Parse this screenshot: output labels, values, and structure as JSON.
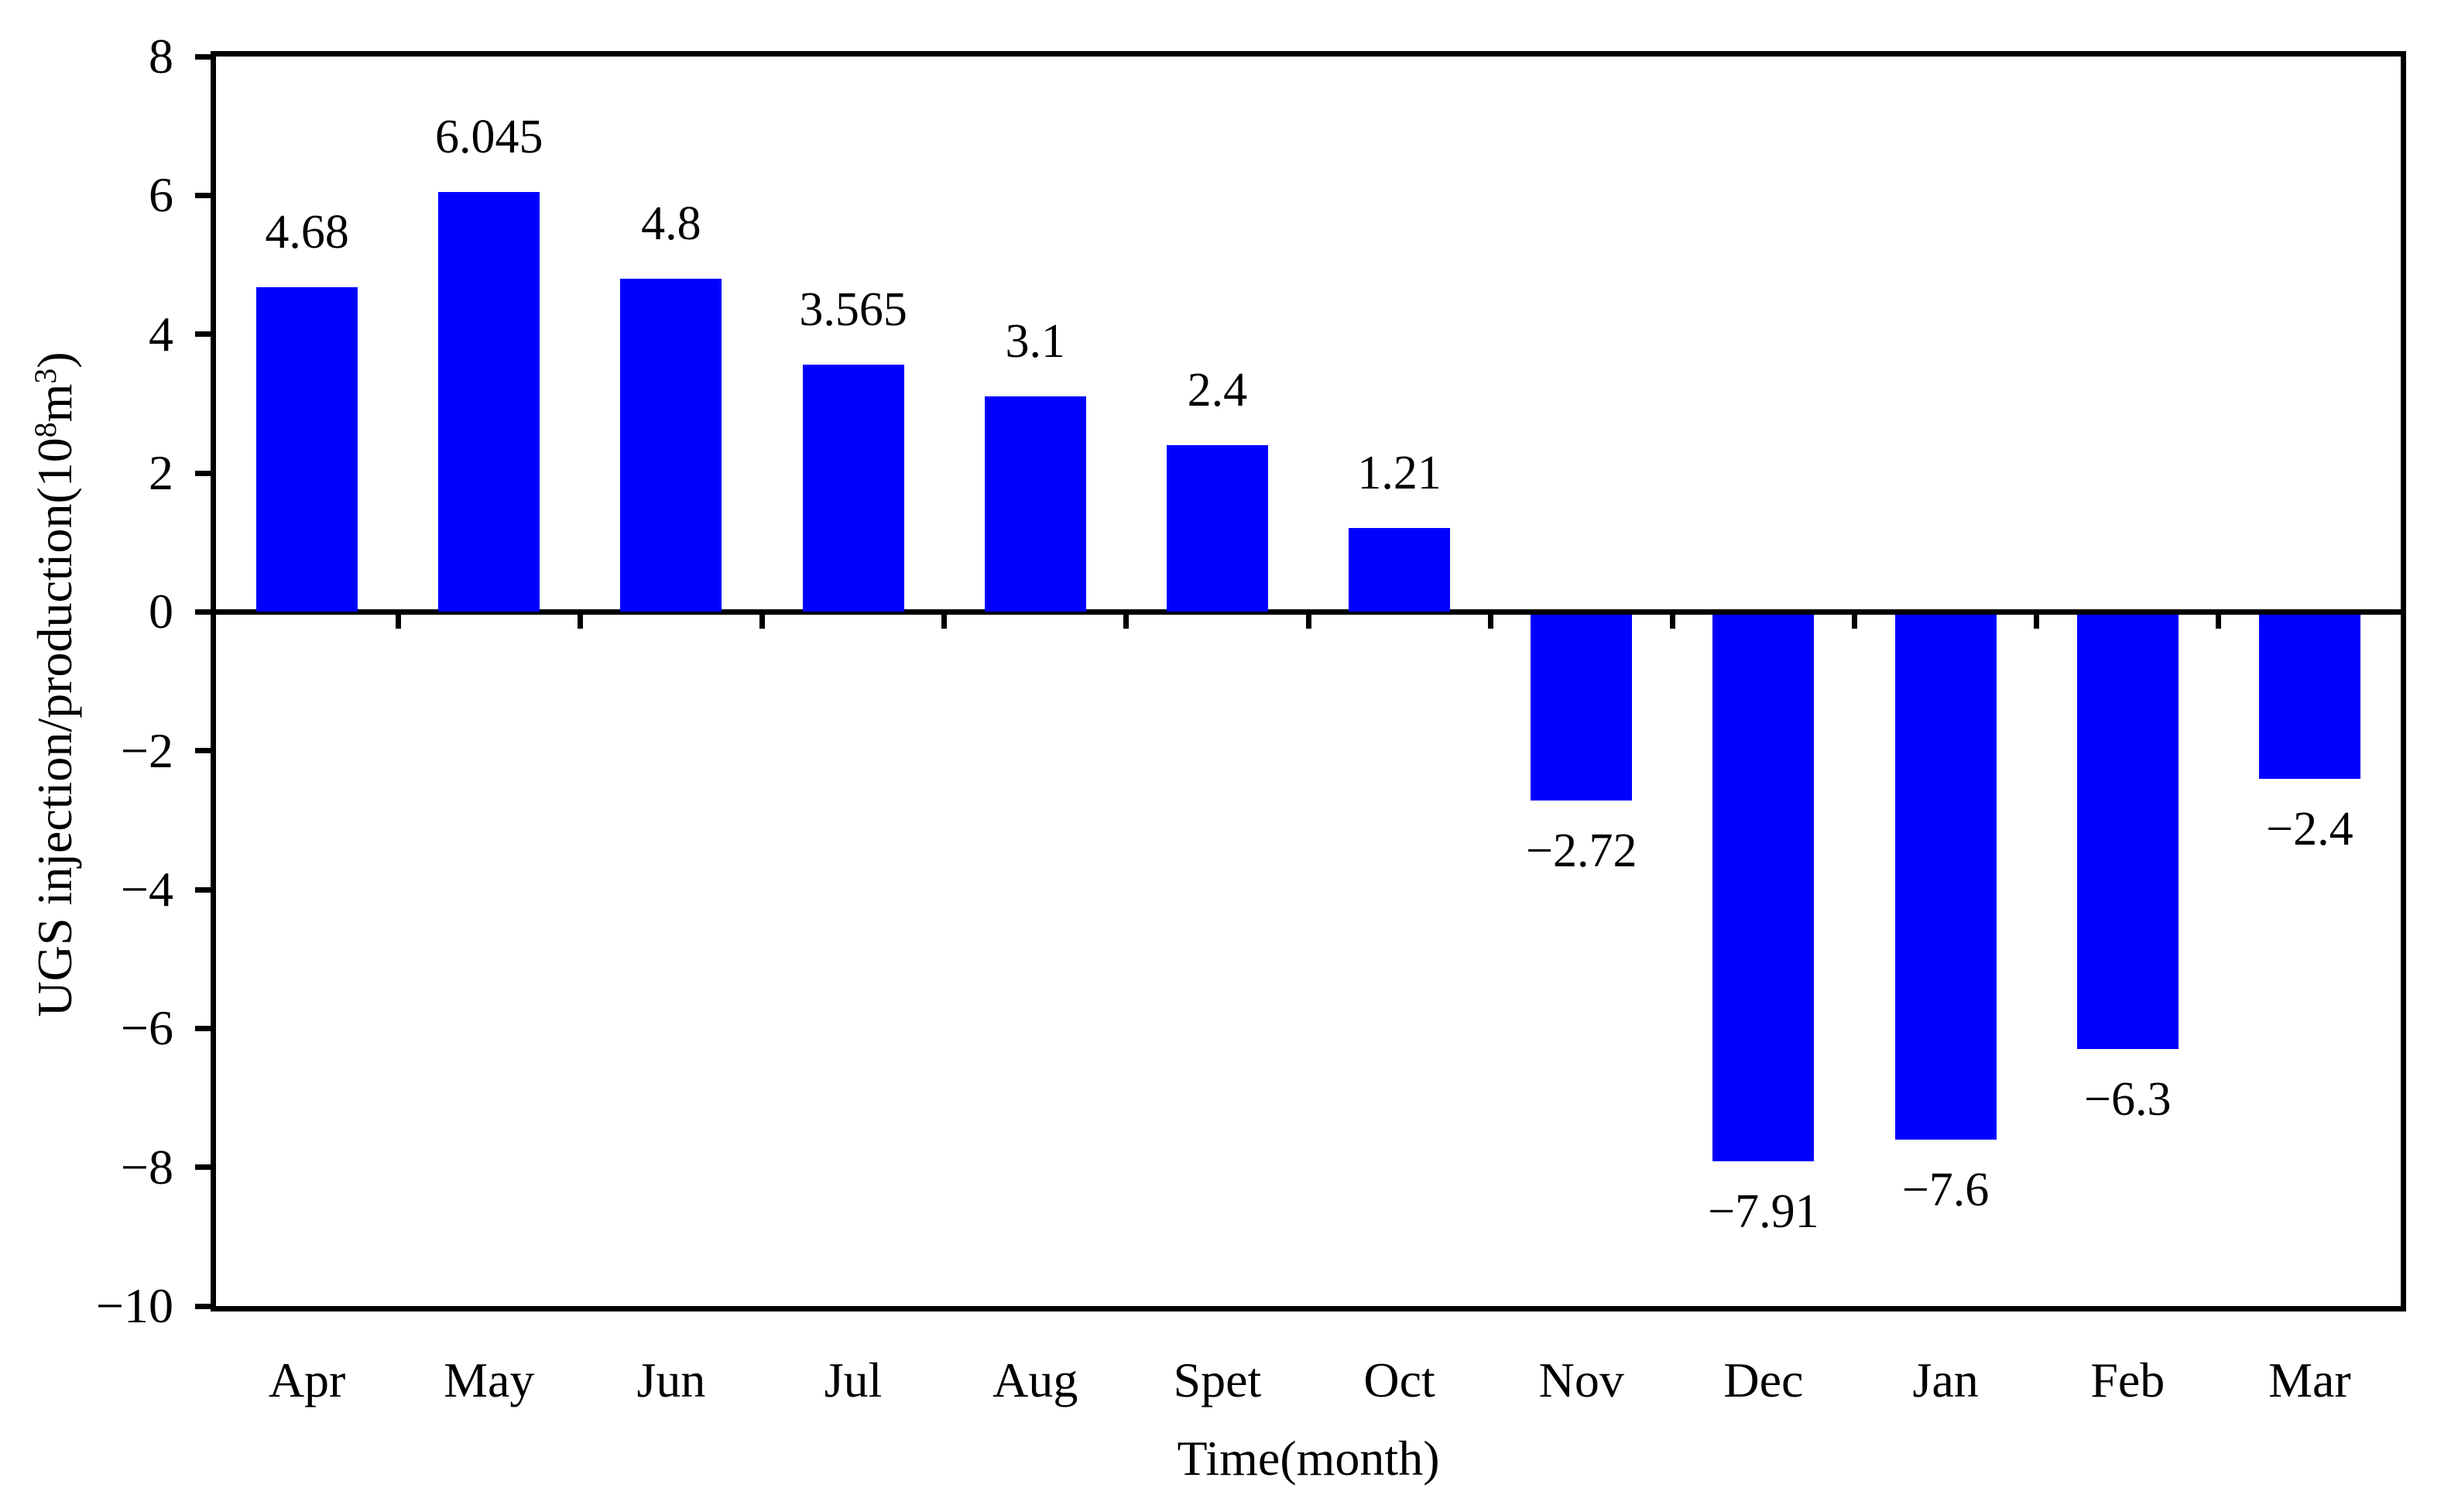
{
  "chart_data": {
    "type": "bar",
    "title": "",
    "xlabel": "Time(month)",
    "ylabel": "UGS injection/production(10⁸m³)",
    "ylabel_parts": [
      {
        "text": "UGS injection/production(10",
        "sup": false
      },
      {
        "text": "8",
        "sup": true
      },
      {
        "text": "m",
        "sup": false
      },
      {
        "text": "3",
        "sup": true
      },
      {
        "text": ")",
        "sup": false
      }
    ],
    "categories": [
      "Apr",
      "May",
      "Jun",
      "Jul",
      "Aug",
      "Spet",
      "Oct",
      "Nov",
      "Dec",
      "Jan",
      "Feb",
      "Mar"
    ],
    "values": [
      4.68,
      6.045,
      4.8,
      3.565,
      3.1,
      2.4,
      1.21,
      -2.72,
      -7.91,
      -7.6,
      -6.3,
      -2.4
    ],
    "value_labels": [
      "4.68",
      "6.045",
      "4.8",
      "3.565",
      "3.1",
      "2.4",
      "1.21",
      "−2.72",
      "−7.91",
      "−7.6",
      "−6.3",
      "−2.4"
    ],
    "y_ticks": [
      8,
      6,
      4,
      2,
      0,
      -2,
      -4,
      -6,
      -8,
      -10
    ],
    "y_tick_labels": [
      "8",
      "6",
      "4",
      "2",
      "0",
      "−2",
      "−4",
      "−6",
      "−8",
      "−10"
    ],
    "ylim": [
      -10,
      8
    ],
    "grid": false,
    "legend": null,
    "bar_color": "#0000FF",
    "axis_color": "#000000",
    "background_color": "#FFFFFF"
  }
}
